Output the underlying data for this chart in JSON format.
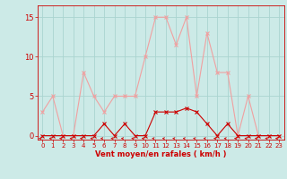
{
  "x": [
    0,
    1,
    2,
    3,
    4,
    5,
    6,
    7,
    8,
    9,
    10,
    11,
    12,
    13,
    14,
    15,
    16,
    17,
    18,
    19,
    20,
    21,
    22,
    23
  ],
  "rafales": [
    3,
    5,
    0,
    0,
    8,
    5,
    3,
    5,
    5,
    5,
    10,
    15,
    15,
    11.5,
    15,
    5,
    13,
    8,
    8,
    0,
    5,
    0,
    0,
    0
  ],
  "moyen": [
    0,
    0,
    0,
    0,
    0,
    0,
    1.5,
    0,
    1.5,
    0,
    0,
    3,
    3,
    3,
    3.5,
    3,
    1.5,
    0,
    1.5,
    0,
    0,
    0,
    0,
    0
  ],
  "bg_color": "#cceae7",
  "grid_color": "#aad4d0",
  "rafales_color": "#f0a0a0",
  "moyen_color": "#cc0000",
  "xlabel": "Vent moyen/en rafales ( km/h )",
  "xlabel_color": "#cc0000",
  "yticks": [
    0,
    5,
    10,
    15
  ],
  "xticks": [
    0,
    1,
    2,
    3,
    4,
    5,
    6,
    7,
    8,
    9,
    10,
    11,
    12,
    13,
    14,
    15,
    16,
    17,
    18,
    19,
    20,
    21,
    22,
    23
  ],
  "ylim": [
    -0.5,
    16.5
  ],
  "xlim": [
    -0.5,
    23.5
  ]
}
